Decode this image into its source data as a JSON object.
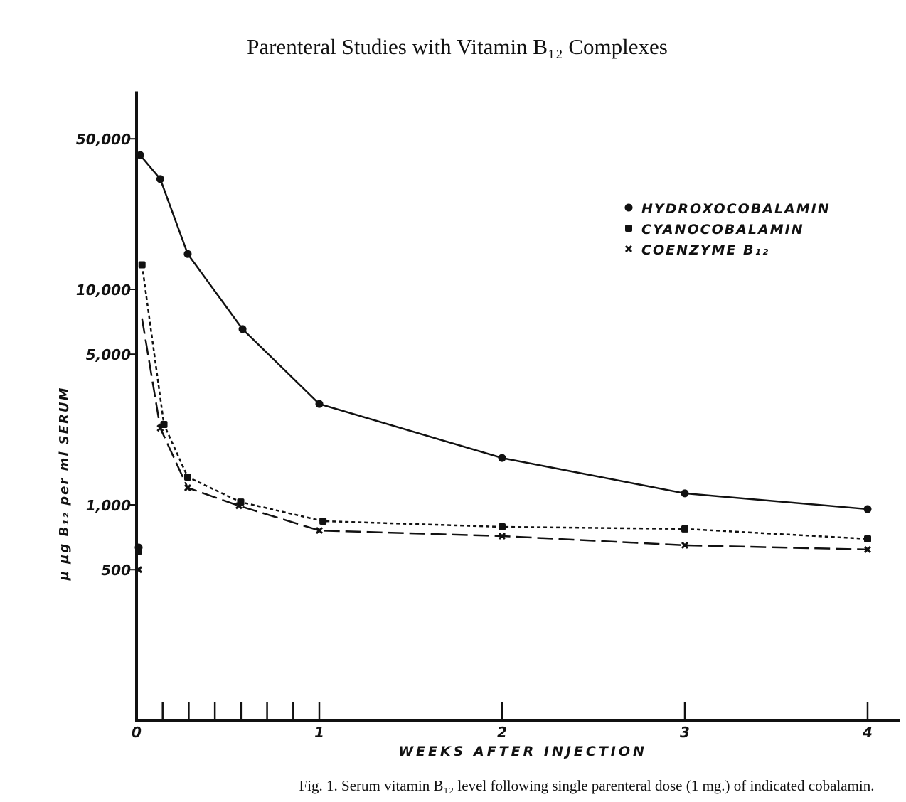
{
  "title": "Parenteral Studies with Vitamin B₁₂ Complexes",
  "caption": "Fig. 1.  Serum vitamin B₁₂ level following single parenteral dose (1 mg.) of indicated cobalamin.",
  "chart_data": {
    "type": "line",
    "xlabel": "WEEKS AFTER INJECTION",
    "ylabel": "µ µg B₁₂ per ml SERUM",
    "yscale": "log",
    "xlim": [
      0,
      4.1
    ],
    "ylim": [
      100,
      83000
    ],
    "xticks": [
      {
        "v": 0,
        "label": "0"
      },
      {
        "v": 1,
        "label": "1"
      },
      {
        "v": 2,
        "label": "2"
      },
      {
        "v": 3,
        "label": "3"
      },
      {
        "v": 4,
        "label": "4"
      }
    ],
    "x_minor_ticks_days": [
      1,
      2,
      3,
      4,
      5,
      6
    ],
    "yticks": [
      {
        "v": 500,
        "label": "500"
      },
      {
        "v": 1000,
        "label": "1,000"
      },
      {
        "v": 5000,
        "label": "5,000"
      },
      {
        "v": 10000,
        "label": "10,000"
      },
      {
        "v": 50000,
        "label": "50,000"
      }
    ],
    "grid": false,
    "legend_position": "top-right",
    "color": "#111111",
    "series": [
      {
        "name": "HYDROXOCOBALAMIN",
        "marker": "circle",
        "dash": "solid",
        "baseline": {
          "x": 0,
          "y": 634
        },
        "x": [
          0.02,
          0.13,
          0.28,
          0.58,
          1,
          2,
          3,
          4
        ],
        "y": [
          42000,
          32500,
          14600,
          6540,
          2940,
          1650,
          1130,
          955
        ]
      },
      {
        "name": "CYANOCOBALAMIN",
        "marker": "square",
        "dash": "short",
        "baseline": {
          "x": 0,
          "y": 610
        },
        "x": [
          0.03,
          0.15,
          0.28,
          0.57,
          1.02,
          2,
          3,
          4
        ],
        "y": [
          13000,
          2360,
          1345,
          1030,
          840,
          790,
          773,
          695
        ]
      },
      {
        "name": "COENZYME B₁₂",
        "marker": "x",
        "dash": "long",
        "baseline": {
          "x": 0,
          "y": 500
        },
        "x": [
          0.03,
          0.13,
          0.28,
          0.56,
          1,
          2,
          3,
          4
        ],
        "y": [
          7330,
          2270,
          1200,
          990,
          760,
          716,
          649,
          620
        ],
        "first_point_marker": false
      }
    ]
  }
}
